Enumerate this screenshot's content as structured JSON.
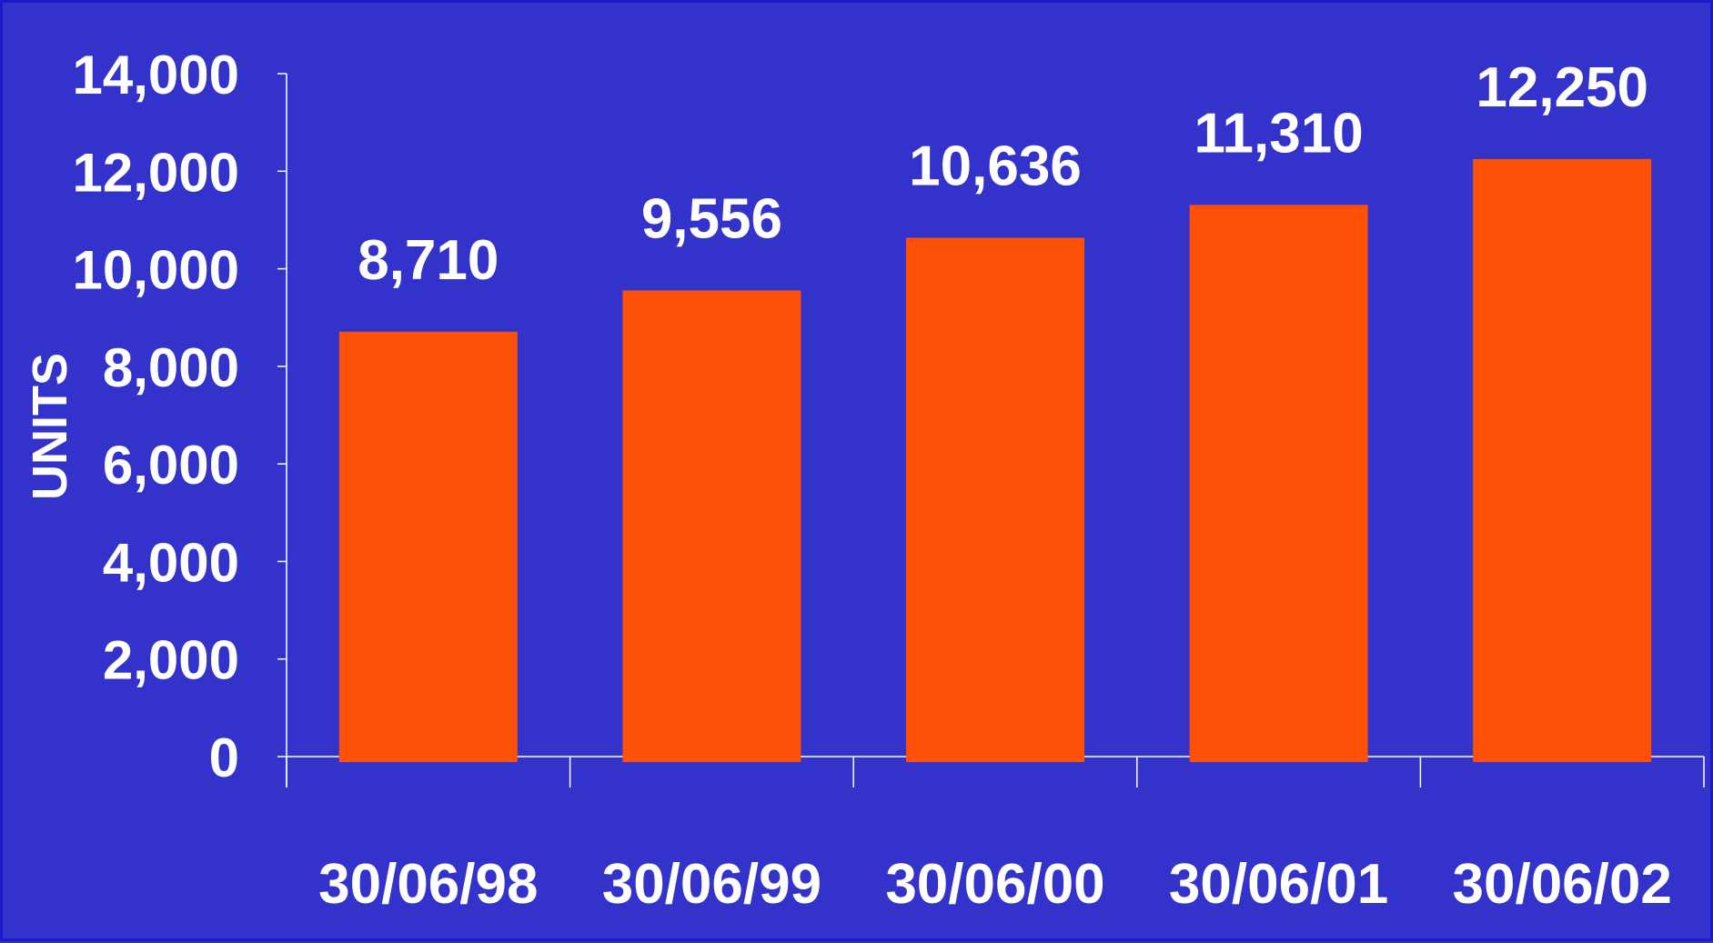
{
  "colors": {
    "background": "#3333cc",
    "bar": "#ff5008",
    "axis": "#ffffff",
    "text": "#ffffff"
  },
  "chart_data": {
    "type": "bar",
    "title": "",
    "xlabel": "",
    "ylabel": "UNITS",
    "categories": [
      "30/06/98",
      "30/06/99",
      "30/06/00",
      "30/06/01",
      "30/06/02"
    ],
    "values": [
      8710,
      9556,
      10636,
      11310,
      12250
    ],
    "value_labels": [
      "8,710",
      "9,556",
      "10,636",
      "11,310",
      "12,250"
    ],
    "ylim": [
      0,
      14000
    ],
    "yticks": [
      0,
      2000,
      4000,
      6000,
      8000,
      10000,
      12000,
      14000
    ],
    "ytick_labels": [
      "0",
      "2,000",
      "4,000",
      "6,000",
      "8,000",
      "10,000",
      "12,000",
      "14,000"
    ],
    "grid": false,
    "legend": "none"
  }
}
